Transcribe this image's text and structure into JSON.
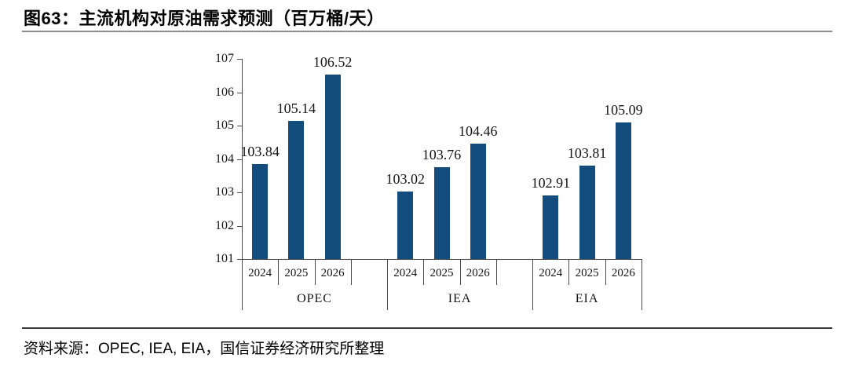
{
  "header": {
    "title": "图63：主流机构对原油需求预测（百万桶/天）"
  },
  "footer": {
    "source": "资料来源：OPEC, IEA, EIA，国信证券经济研究所整理"
  },
  "chart_data": {
    "type": "bar",
    "figure_label": "图63",
    "title": "主流机构对原油需求预测（百万桶/天）",
    "categories": [
      "2024",
      "2025",
      "2026"
    ],
    "series": [
      {
        "name": "OPEC",
        "values": [
          103.84,
          105.14,
          106.52
        ]
      },
      {
        "name": "IEA",
        "values": [
          103.02,
          103.76,
          104.46
        ]
      },
      {
        "name": "EIA",
        "values": [
          102.91,
          103.81,
          105.09
        ]
      }
    ],
    "xlabel": "",
    "ylabel": "",
    "ylim": [
      101,
      107
    ],
    "ytick_step": 1,
    "yticks": [
      101,
      102,
      103,
      104,
      105,
      106,
      107
    ],
    "grid": false,
    "legend": false,
    "data_labels": true,
    "bar_color": "#134d7d"
  }
}
